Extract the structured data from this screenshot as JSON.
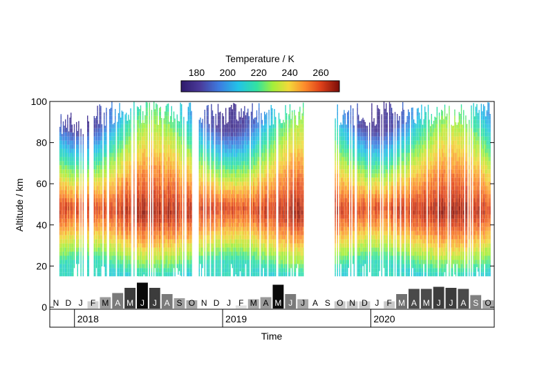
{
  "chart_data": {
    "type": "heatmap",
    "colorbar": {
      "title": "Temperature / K",
      "ticks": [
        180,
        200,
        220,
        240,
        260
      ],
      "range": [
        170,
        272
      ]
    },
    "yaxis": {
      "label": "Altitude / km",
      "ticks": [
        0,
        20,
        40,
        60,
        80,
        100
      ],
      "range": [
        0,
        100
      ]
    },
    "xaxis": {
      "label": "Time",
      "years": [
        "2018",
        "2019",
        "2020"
      ]
    },
    "month_counts": [
      {
        "m": "N",
        "v": 0.3,
        "color": "#ffffff"
      },
      {
        "m": "D",
        "v": 0.3,
        "color": "#ffffff"
      },
      {
        "m": "J",
        "v": 0.5,
        "color": "#ffffff"
      },
      {
        "m": "F",
        "v": 3.5,
        "color": "#d0d0d0"
      },
      {
        "m": "M",
        "v": 5.5,
        "color": "#9a9a9a"
      },
      {
        "m": "A",
        "v": 7.5,
        "color": "#7a7a7a"
      },
      {
        "m": "M",
        "v": 10.0,
        "color": "#3c3c3c"
      },
      {
        "m": "J",
        "v": 12.5,
        "color": "#0a0a0a"
      },
      {
        "m": "J",
        "v": 10.0,
        "color": "#3c3c3c"
      },
      {
        "m": "A",
        "v": 7.0,
        "color": "#7a7a7a"
      },
      {
        "m": "S",
        "v": 5.0,
        "color": "#a0a0a0"
      },
      {
        "m": "O",
        "v": 4.0,
        "color": "#a8a8a8"
      },
      {
        "m": "N",
        "v": 0.3,
        "color": "#ffffff"
      },
      {
        "m": "D",
        "v": 0.3,
        "color": "#ffffff"
      },
      {
        "m": "J",
        "v": 0.5,
        "color": "#ffffff"
      },
      {
        "m": "F",
        "v": 1.5,
        "color": "#e0e0e0"
      },
      {
        "m": "M",
        "v": 4.5,
        "color": "#a8a8a8"
      },
      {
        "m": "A",
        "v": 5.5,
        "color": "#9a9a9a"
      },
      {
        "m": "M",
        "v": 11.5,
        "color": "#0a0a0a"
      },
      {
        "m": "J",
        "v": 7.0,
        "color": "#7a7a7a"
      },
      {
        "m": "J",
        "v": 4.5,
        "color": "#a8a8a8"
      },
      {
        "m": "A",
        "v": 0.3,
        "color": "#ffffff"
      },
      {
        "m": "S",
        "v": 0.3,
        "color": "#ffffff"
      },
      {
        "m": "O",
        "v": 3.5,
        "color": "#c8c8c8"
      },
      {
        "m": "N",
        "v": 3.5,
        "color": "#c8c8c8"
      },
      {
        "m": "D",
        "v": 3.5,
        "color": "#c8c8c8"
      },
      {
        "m": "J",
        "v": 0.5,
        "color": "#ffffff"
      },
      {
        "m": "F",
        "v": 3.5,
        "color": "#c8c8c8"
      },
      {
        "m": "M",
        "v": 7.0,
        "color": "#707070"
      },
      {
        "m": "A",
        "v": 9.5,
        "color": "#4a4a4a"
      },
      {
        "m": "M",
        "v": 9.5,
        "color": "#4a4a4a"
      },
      {
        "m": "J",
        "v": 10.5,
        "color": "#3c3c3c"
      },
      {
        "m": "J",
        "v": 10.0,
        "color": "#3c3c3c"
      },
      {
        "m": "A",
        "v": 9.5,
        "color": "#4a4a4a"
      },
      {
        "m": "S",
        "v": 6.5,
        "color": "#808080"
      },
      {
        "m": "O",
        "v": 4.0,
        "color": "#a8a8a8"
      }
    ],
    "data_gaps": [
      {
        "from": "2018-10",
        "to": "2018-11"
      },
      {
        "from": "2019-07",
        "to": "2019-09"
      }
    ],
    "grid": false
  }
}
